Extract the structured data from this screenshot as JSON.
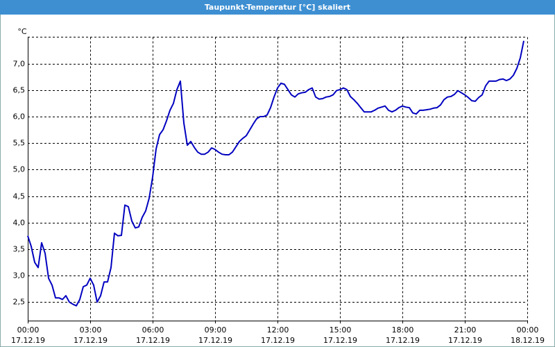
{
  "chart_data": {
    "type": "line",
    "title": "Taupunkt-Temperatur [°C] skaliert",
    "y_label": "°C",
    "x": [
      0,
      10,
      20,
      30,
      40,
      50,
      60,
      70,
      80,
      90,
      100,
      110,
      120,
      130,
      140,
      150,
      160,
      170,
      180,
      190,
      200,
      210,
      220,
      230,
      240,
      250,
      260,
      270,
      280,
      290,
      300,
      310,
      320,
      330,
      340,
      350,
      360,
      370,
      380,
      390,
      400,
      410,
      420,
      430,
      440,
      450,
      460,
      470,
      480,
      490,
      500,
      510,
      520,
      530,
      540,
      550,
      560,
      570,
      580,
      590,
      600,
      610,
      620,
      630,
      640,
      650,
      660,
      670,
      680,
      690,
      700,
      710,
      720,
      730,
      740,
      750,
      760,
      770,
      780,
      790,
      800,
      810,
      820,
      830,
      840,
      850,
      860,
      870,
      880,
      890,
      900,
      910,
      920,
      930,
      940,
      950,
      960,
      970,
      980,
      990,
      1000,
      1010,
      1020,
      1030,
      1040,
      1050,
      1060,
      1070,
      1080,
      1090,
      1100,
      1110,
      1120,
      1130,
      1140,
      1150,
      1160,
      1170,
      1180,
      1190,
      1200,
      1210,
      1220,
      1230,
      1240,
      1250,
      1260,
      1270,
      1280,
      1290,
      1300,
      1310,
      1320,
      1330,
      1340,
      1350,
      1360,
      1370,
      1380,
      1390,
      1400,
      1410,
      1420,
      1430
    ],
    "series": [
      {
        "name": "Taupunkt-Temperatur",
        "color": "#0000c0",
        "values": [
          3.75,
          3.55,
          3.25,
          3.15,
          3.62,
          3.42,
          2.95,
          2.82,
          2.58,
          2.58,
          2.55,
          2.62,
          2.5,
          2.46,
          2.43,
          2.55,
          2.79,
          2.82,
          2.95,
          2.82,
          2.5,
          2.62,
          2.88,
          2.88,
          3.15,
          3.8,
          3.75,
          3.76,
          4.33,
          4.3,
          4.03,
          3.9,
          3.92,
          4.1,
          4.22,
          4.46,
          4.86,
          5.39,
          5.66,
          5.75,
          5.92,
          6.12,
          6.25,
          6.51,
          6.67,
          5.88,
          5.46,
          5.53,
          5.42,
          5.33,
          5.29,
          5.29,
          5.33,
          5.41,
          5.38,
          5.33,
          5.29,
          5.28,
          5.28,
          5.33,
          5.43,
          5.53,
          5.59,
          5.64,
          5.75,
          5.86,
          5.96,
          6.0,
          6.0,
          6.03,
          6.17,
          6.37,
          6.54,
          6.63,
          6.61,
          6.51,
          6.41,
          6.37,
          6.43,
          6.45,
          6.46,
          6.51,
          6.54,
          6.37,
          6.33,
          6.34,
          6.37,
          6.38,
          6.41,
          6.49,
          6.51,
          6.54,
          6.51,
          6.38,
          6.32,
          6.25,
          6.17,
          6.09,
          6.09,
          6.09,
          6.12,
          6.16,
          6.18,
          6.2,
          6.12,
          6.09,
          6.12,
          6.17,
          6.2,
          6.18,
          6.17,
          6.07,
          6.05,
          6.12,
          6.12,
          6.13,
          6.14,
          6.16,
          6.17,
          6.22,
          6.32,
          6.37,
          6.38,
          6.42,
          6.49,
          6.45,
          6.41,
          6.36,
          6.3,
          6.29,
          6.36,
          6.41,
          6.58,
          6.67,
          6.67,
          6.67,
          6.7,
          6.71,
          6.68,
          6.71,
          6.78,
          6.91,
          7.11,
          7.43
        ]
      }
    ],
    "xlim": [
      0,
      1440
    ],
    "xticks": [
      {
        "value": 0,
        "label": "00:00",
        "date": "17.12.19"
      },
      {
        "value": 180,
        "label": "03:00",
        "date": "17.12.19"
      },
      {
        "value": 360,
        "label": "06:00",
        "date": "17.12.19"
      },
      {
        "value": 540,
        "label": "09:00",
        "date": "17.12.19"
      },
      {
        "value": 720,
        "label": "12:00",
        "date": "17.12.19"
      },
      {
        "value": 900,
        "label": "15:00",
        "date": "17.12.19"
      },
      {
        "value": 1080,
        "label": "18:00",
        "date": "17.12.19"
      },
      {
        "value": 1260,
        "label": "21:00",
        "date": "17.12.19"
      },
      {
        "value": 1440,
        "label": "00:00",
        "date": "18.12.19"
      }
    ],
    "ylim": [
      2.15,
      7.5
    ],
    "yticks": [
      {
        "value": 2.5,
        "label": "2,5"
      },
      {
        "value": 3,
        "label": "3,0"
      },
      {
        "value": 3.5,
        "label": "3,5"
      },
      {
        "value": 4,
        "label": "4,0"
      },
      {
        "value": 4.5,
        "label": "4,5"
      },
      {
        "value": 5,
        "label": "5,0"
      },
      {
        "value": 5.5,
        "label": "5,5"
      },
      {
        "value": 6,
        "label": "6,0"
      },
      {
        "value": 6.5,
        "label": "6,5"
      },
      {
        "value": 7,
        "label": "7,0"
      }
    ],
    "grid": true
  }
}
